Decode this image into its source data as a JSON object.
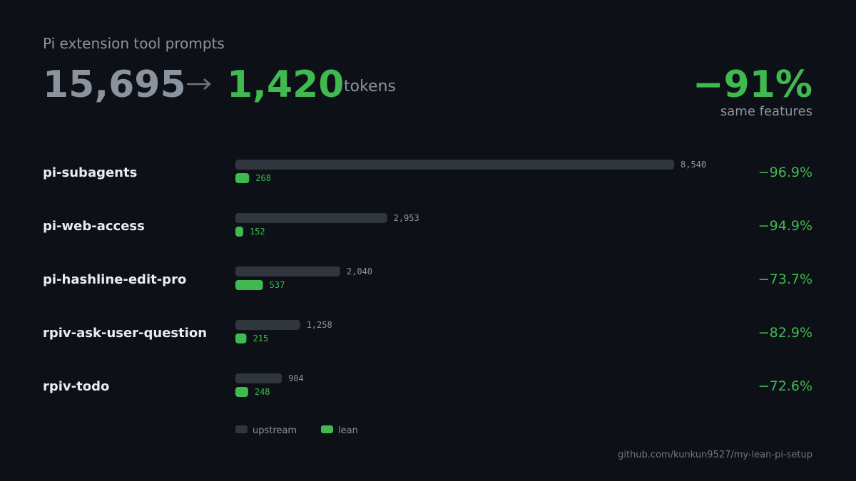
{
  "headline": {
    "title": "Pi extension tool prompts",
    "before": {
      "value": 15695,
      "label": "15,695"
    },
    "after": {
      "value": 1420,
      "label": "1,420"
    },
    "unit": "tokens",
    "change": {
      "value": -91,
      "label": "−91%"
    },
    "change_note": "same features"
  },
  "chart_data": {
    "type": "bar",
    "orientation": "horizontal",
    "categories": [
      "pi-subagents",
      "pi-web-access",
      "pi-hashline-edit-pro",
      "rpiv-ask-user-question",
      "rpiv-todo"
    ],
    "series": [
      {
        "name": "upstream",
        "color": "#30363d",
        "values": [
          8540,
          2953,
          2040,
          1258,
          904
        ],
        "value_labels": [
          "8,540",
          "2,953",
          "2,040",
          "1,258",
          "904"
        ]
      },
      {
        "name": "lean",
        "color": "#3fb950",
        "values": [
          268,
          152,
          537,
          215,
          248
        ],
        "value_labels": [
          "268",
          "152",
          "537",
          "215",
          "248"
        ]
      }
    ],
    "reductions": {
      "values": [
        -96.9,
        -94.9,
        -73.7,
        -82.9,
        -72.6
      ],
      "value_labels": [
        "−96.9%",
        "−94.9%",
        "−73.7%",
        "−82.9%",
        "−72.6%"
      ]
    },
    "xlim": [
      0,
      8540
    ]
  },
  "footer": "github.com/kunkun9527/my-lean-pi-setup"
}
